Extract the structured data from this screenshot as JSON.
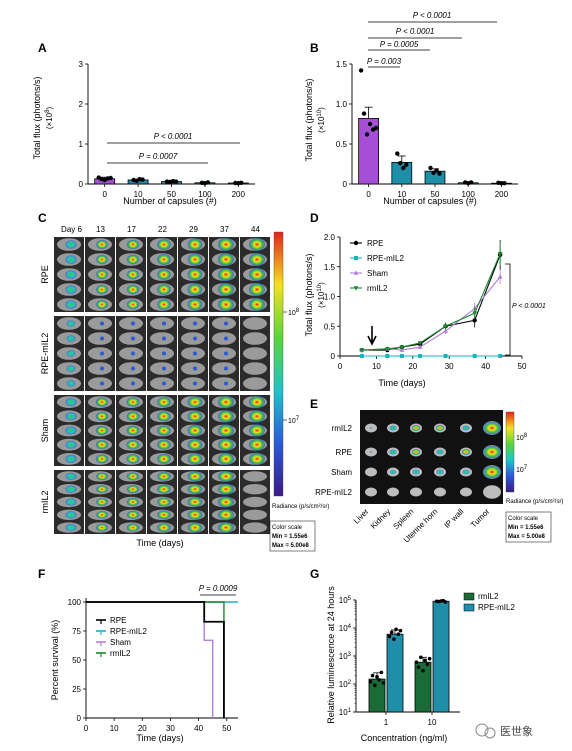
{
  "watermark": "医世象",
  "panelA": {
    "letter": "A",
    "ylabel": "Total flux (photons/s)",
    "yunit": "(×10^8)",
    "xlabel": "Number of capsules (#)",
    "ticks_y": [
      "0",
      "1",
      "2",
      "3"
    ],
    "categories": [
      "0",
      "10",
      "50",
      "100",
      "200"
    ],
    "pvals": [
      "P = 0.0007",
      "P < 0.0001"
    ]
  },
  "panelB": {
    "letter": "B",
    "ylabel": "Total flux (photons/s)",
    "yunit": "(×10^10)",
    "xlabel": "Number of capsules (#)",
    "ticks_y": [
      "0",
      "0.5",
      "1.0",
      "1.5"
    ],
    "categories": [
      "0",
      "10",
      "50",
      "100",
      "200"
    ],
    "pvals": [
      "P < 0.0001",
      "P < 0.0001",
      "P = 0.0005",
      "P = 0.003"
    ]
  },
  "panelC": {
    "letter": "C",
    "days": [
      "Day 6",
      "13",
      "17",
      "22",
      "29",
      "37",
      "44"
    ],
    "groups": [
      "RPE",
      "RPE-mIL2",
      "Sham",
      "rmIL2"
    ],
    "xlabel": "Time (days)",
    "colorbar_title": "Radiance (p/s/cm²/sr)",
    "colorbar_hi": "10^8",
    "colorbar_lo": "10^7",
    "scale_title": "Color scale",
    "scale_min": "Min = 1.55e6",
    "scale_max": "Max = 5.00e8"
  },
  "panelD": {
    "letter": "D",
    "ylabel": "Total flux (photons/s)",
    "yunit": "(×10^10)",
    "xlabel": "Time (days)",
    "ticks_y": [
      "0",
      "0.5",
      "1.0",
      "1.5",
      "2.0"
    ],
    "ticks_x": [
      "0",
      "10",
      "20",
      "30",
      "40",
      "50"
    ],
    "legend": [
      "RPE",
      "RPE-mIL2",
      "Sham",
      "rmIL2"
    ],
    "pval": "P < 0.0001"
  },
  "panelE": {
    "letter": "E",
    "rows": [
      "rmIL2",
      "RPE",
      "Sham",
      "RPE-mIL2"
    ],
    "organs": [
      "Liver",
      "Kidney",
      "Spleen",
      "Uterine horn",
      "IP wall",
      "Tumor"
    ],
    "colorbar_title": "Radiance (p/s/cm²/sr)",
    "colorbar_hi": "10^8",
    "colorbar_lo": "10^7",
    "scale_title": "Color scale",
    "scale_min": "Min = 1.55e6",
    "scale_max": "Max = 5.00e8"
  },
  "panelF": {
    "letter": "F",
    "ylabel": "Percent survival (%)",
    "xlabel": "Time (days)",
    "ticks_y": [
      "0",
      "25",
      "50",
      "75",
      "100"
    ],
    "ticks_x": [
      "0",
      "10",
      "20",
      "30",
      "40",
      "50"
    ],
    "legend": [
      "RPE",
      "RPE-mIL2",
      "Sham",
      "rmIL2"
    ],
    "pval": "P = 0.0009"
  },
  "panelG": {
    "letter": "G",
    "ylabel": "Relative luminescence at 24 hours",
    "xlabel": "Concentration (ng/ml)",
    "ticks_y": [
      "10^1",
      "10^2",
      "10^3",
      "10^4",
      "10^5"
    ],
    "categories": [
      "1",
      "10"
    ],
    "legend": [
      "rmIL2",
      "RPE-mIL2"
    ]
  },
  "colors": {
    "purple": "#a54fd6",
    "teal": "#1f8ea8",
    "darkgreen": "#1a6b36",
    "lightpurple": "#b07fd9",
    "cyan": "#17b3c4",
    "green": "#1b8a2e"
  },
  "chart_data": [
    {
      "type": "bar",
      "title": "",
      "categories": [
        "0",
        "10",
        "50",
        "100",
        "200"
      ],
      "values": [
        0.13,
        0.1,
        0.06,
        0.03,
        0.025
      ],
      "xlabel": "Number of capsules (#)",
      "ylabel": "Total flux (photons/s) (×10^8)",
      "ylim": [
        0,
        3
      ]
    },
    {
      "type": "bar",
      "title": "",
      "categories": [
        "0",
        "10",
        "50",
        "100",
        "200"
      ],
      "values": [
        0.82,
        0.27,
        0.16,
        0.015,
        0.01
      ],
      "xlabel": "Number of capsules (#)",
      "ylabel": "Total flux (photons/s) (×10^10)",
      "ylim": [
        0,
        1.5
      ]
    },
    {
      "type": "line",
      "title": "",
      "x": [
        6,
        13,
        17,
        22,
        29,
        37,
        44
      ],
      "series": [
        {
          "name": "RPE",
          "values": [
            0.1,
            0.1,
            0.15,
            0.2,
            0.5,
            0.6,
            1.7
          ]
        },
        {
          "name": "RPE-mIL2",
          "values": [
            0.0,
            0.0,
            0.0,
            0.0,
            0.0,
            0.0,
            0.0
          ]
        },
        {
          "name": "Sham",
          "values": [
            0.1,
            0.12,
            0.1,
            0.15,
            0.42,
            0.8,
            1.33
          ]
        },
        {
          "name": "rmIL2",
          "values": [
            0.1,
            0.12,
            0.15,
            0.22,
            0.5,
            0.72,
            1.72
          ]
        }
      ],
      "xlabel": "Time (days)",
      "ylabel": "Total flux (photons/s) (×10^10)",
      "ylim": [
        0,
        2.0
      ],
      "xlim": [
        0,
        50
      ]
    },
    {
      "type": "line",
      "title": "",
      "series": [
        {
          "name": "RPE",
          "x": [
            0,
            38,
            42,
            45,
            49
          ],
          "values": [
            100,
            100,
            83,
            83,
            0
          ]
        },
        {
          "name": "RPE-mIL2",
          "x": [
            0,
            54
          ],
          "values": [
            100,
            100
          ]
        },
        {
          "name": "Sham",
          "x": [
            0,
            38,
            42,
            45
          ],
          "values": [
            100,
            100,
            67,
            0
          ]
        },
        {
          "name": "rmIL2",
          "x": [
            0,
            45,
            49,
            49
          ],
          "values": [
            100,
            100,
            17,
            0
          ]
        }
      ],
      "xlabel": "Time (days)",
      "ylabel": "Percent survival (%)",
      "ylim": [
        0,
        100
      ],
      "xlim": [
        0,
        54
      ]
    },
    {
      "type": "bar",
      "title": "",
      "categories": [
        "1",
        "10"
      ],
      "series": [
        {
          "name": "rmIL2",
          "values": [
            150,
            600
          ]
        },
        {
          "name": "RPE-mIL2",
          "values": [
            6000,
            90000
          ]
        }
      ],
      "xlabel": "Concentration (ng/ml)",
      "ylabel": "Relative luminescence at 24 hours",
      "ylim": [
        10,
        100000
      ],
      "scale": "log"
    }
  ]
}
